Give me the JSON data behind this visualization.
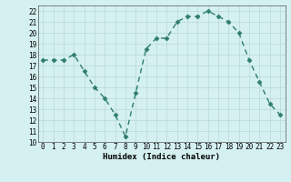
{
  "x": [
    0,
    1,
    2,
    3,
    4,
    5,
    6,
    7,
    8,
    9,
    10,
    11,
    12,
    13,
    14,
    15,
    16,
    17,
    18,
    19,
    20,
    21,
    22,
    23
  ],
  "y": [
    17.5,
    17.5,
    17.5,
    18.0,
    16.5,
    15.0,
    14.0,
    12.5,
    10.5,
    14.5,
    18.5,
    19.5,
    19.5,
    21.0,
    21.5,
    21.5,
    22.0,
    21.5,
    21.0,
    20.0,
    17.5,
    15.5,
    13.5,
    12.5
  ],
  "xlabel": "Humidex (Indice chaleur)",
  "xlim": [
    -0.5,
    23.5
  ],
  "ylim": [
    10,
    22.5
  ],
  "yticks": [
    10,
    11,
    12,
    13,
    14,
    15,
    16,
    17,
    18,
    19,
    20,
    21,
    22
  ],
  "xticks": [
    0,
    1,
    2,
    3,
    4,
    5,
    6,
    7,
    8,
    9,
    10,
    11,
    12,
    13,
    14,
    15,
    16,
    17,
    18,
    19,
    20,
    21,
    22,
    23
  ],
  "line_color": "#2e7d6e",
  "marker_color": "#2e7d6e",
  "bg_color": "#d5f0f0",
  "grid_color": "#b8d8d8",
  "spine_color": "#555555"
}
